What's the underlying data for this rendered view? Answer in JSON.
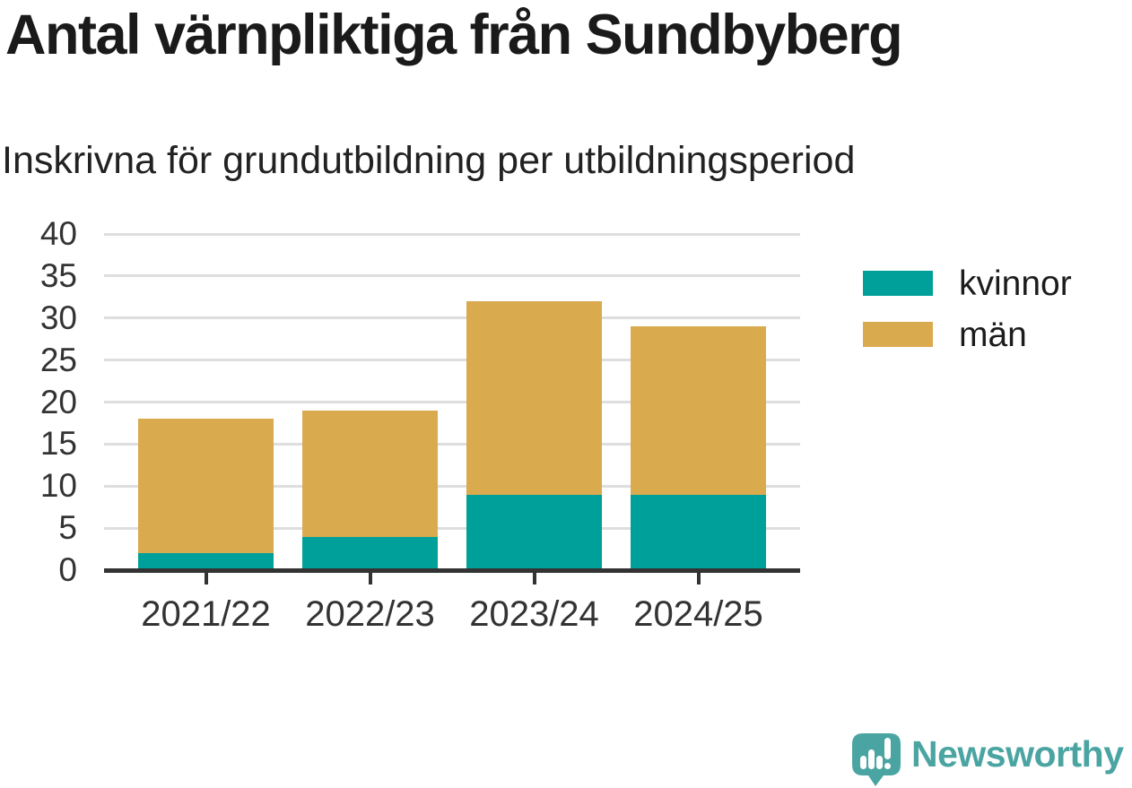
{
  "header": {
    "title": "Antal värnpliktiga från Sundbyberg",
    "subtitle": "Inskrivna för grundutbildning per utbildningsperiod"
  },
  "chart_data": {
    "type": "bar",
    "stacked": true,
    "title": "Antal värnpliktiga från Sundbyberg",
    "subtitle": "Inskrivna för grundutbildning per utbildningsperiod",
    "categories": [
      "2021/22",
      "2022/23",
      "2023/24",
      "2024/25"
    ],
    "series": [
      {
        "name": "kvinnor",
        "color": "#00A09A",
        "values": [
          2,
          4,
          9,
          9
        ]
      },
      {
        "name": "män",
        "color": "#DAAA4F",
        "values": [
          16,
          15,
          23,
          20
        ]
      }
    ],
    "totals": [
      18,
      19,
      32,
      29
    ],
    "xlabel": "",
    "ylabel": "",
    "ylim": [
      0,
      40
    ],
    "yticks": [
      0,
      5,
      10,
      15,
      20,
      25,
      30,
      35,
      40
    ],
    "grid": "horizontal",
    "legend_position": "right"
  },
  "footer": {
    "brand": "Newsworthy"
  },
  "colors": {
    "kvinnor": "#00A09A",
    "man": "#DAAA4F",
    "grid": "#DEDEDE",
    "axis": "#333333",
    "title_text": "#1A1A1A",
    "logo": "#4AA5A2"
  }
}
